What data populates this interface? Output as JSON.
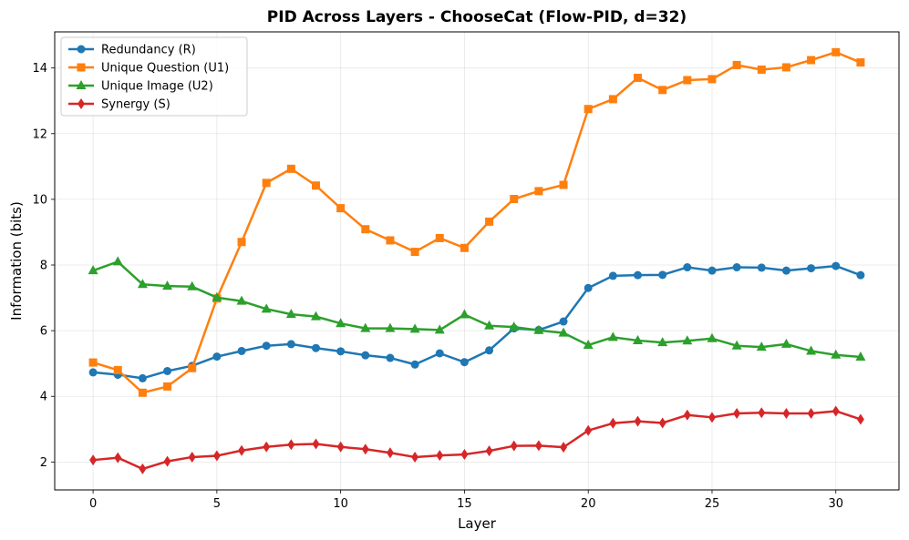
{
  "chart_data": {
    "type": "line",
    "title": "PID Across Layers - ChooseCat (Flow-PID, d=32)",
    "xlabel": "Layer",
    "ylabel": "Information (bits)",
    "xlim": [
      -1.55,
      32.55
    ],
    "ylim": [
      1.15,
      15.1
    ],
    "xticks": [
      0,
      5,
      10,
      15,
      20,
      25,
      30
    ],
    "yticks": [
      2,
      4,
      6,
      8,
      10,
      12,
      14
    ],
    "grid": true,
    "legend_position": "top-left",
    "x": [
      0,
      1,
      2,
      3,
      4,
      5,
      6,
      7,
      8,
      9,
      10,
      11,
      12,
      13,
      14,
      15,
      16,
      17,
      18,
      19,
      20,
      21,
      22,
      23,
      24,
      25,
      26,
      27,
      28,
      29,
      30,
      31
    ],
    "series": [
      {
        "name": "Redundancy (R)",
        "color": "#1f77b4",
        "marker": "circle",
        "values": [
          4.73,
          4.66,
          4.55,
          4.77,
          4.93,
          5.21,
          5.38,
          5.54,
          5.59,
          5.47,
          5.37,
          5.25,
          5.17,
          4.97,
          5.31,
          5.04,
          5.4,
          6.07,
          6.02,
          6.28,
          7.3,
          7.67,
          7.69,
          7.7,
          7.93,
          7.83,
          7.93,
          7.92,
          7.83,
          7.9,
          7.97,
          7.69
        ]
      },
      {
        "name": "Unique Question (U1)",
        "color": "#ff7f0e",
        "marker": "square",
        "values": [
          5.03,
          4.8,
          4.11,
          4.3,
          4.86,
          6.98,
          8.7,
          10.5,
          10.93,
          10.42,
          9.73,
          9.09,
          8.75,
          8.4,
          8.82,
          8.52,
          9.32,
          10.01,
          10.25,
          10.44,
          12.75,
          13.05,
          13.7,
          13.33,
          13.63,
          13.66,
          14.09,
          13.95,
          14.02,
          14.24,
          14.48,
          14.17
        ]
      },
      {
        "name": "Unique Image (U2)",
        "color": "#2ca02c",
        "marker": "triangle",
        "values": [
          7.83,
          8.1,
          7.41,
          7.36,
          7.34,
          7.01,
          6.9,
          6.66,
          6.5,
          6.43,
          6.22,
          6.07,
          6.07,
          6.05,
          6.02,
          6.49,
          6.15,
          6.11,
          6.01,
          5.93,
          5.56,
          5.8,
          5.7,
          5.64,
          5.69,
          5.76,
          5.54,
          5.5,
          5.59,
          5.38,
          5.26,
          5.2
        ]
      },
      {
        "name": "Synergy (S)",
        "color": "#d62728",
        "marker": "diamond",
        "values": [
          2.06,
          2.13,
          1.79,
          2.02,
          2.15,
          2.19,
          2.35,
          2.46,
          2.53,
          2.55,
          2.46,
          2.39,
          2.28,
          2.15,
          2.2,
          2.23,
          2.34,
          2.49,
          2.5,
          2.45,
          2.96,
          3.18,
          3.24,
          3.19,
          3.43,
          3.36,
          3.48,
          3.5,
          3.48,
          3.48,
          3.55,
          3.3
        ]
      }
    ]
  }
}
